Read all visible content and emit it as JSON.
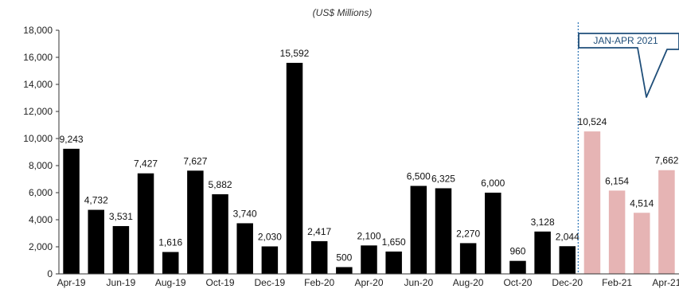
{
  "chart_data": {
    "type": "bar",
    "unit_label": "(US$ Millions)",
    "categories": [
      "Apr-19",
      "May-19",
      "Jun-19",
      "Jul-19",
      "Aug-19",
      "Sep-19",
      "Oct-19",
      "Nov-19",
      "Dec-19",
      "Jan-20",
      "Feb-20",
      "Mar-20",
      "Apr-20",
      "May-20",
      "Jun-20",
      "Jul-20",
      "Aug-20",
      "Sep-20",
      "Oct-20",
      "Nov-20",
      "Dec-20",
      "Jan-21",
      "Feb-21",
      "Mar-21",
      "Apr-21"
    ],
    "values": [
      9243,
      4732,
      3531,
      7427,
      1616,
      7627,
      5882,
      3740,
      2030,
      15592,
      2417,
      500,
      2100,
      1650,
      6500,
      6325,
      2270,
      6000,
      960,
      3128,
      2044,
      10524,
      6154,
      4514,
      7662
    ],
    "data_labels": [
      "9,243",
      "4,732",
      "3,531",
      "7,427",
      "1,616",
      "7,627",
      "5,882",
      "3,740",
      "2,030",
      "15,592",
      "2,417",
      "500",
      "2,100",
      "1,650",
      "6,500",
      "6,325",
      "2,270",
      "6,000",
      "960",
      "3,128",
      "2,044",
      "10,524",
      "6,154",
      "4,514",
      "7,662"
    ],
    "x_tick_labels": [
      "Apr-19",
      "Jun-19",
      "Aug-19",
      "Oct-19",
      "Dec-19",
      "Feb-20",
      "Apr-20",
      "Jun-20",
      "Aug-20",
      "Oct-20",
      "Dec-20",
      "Feb-21",
      "Apr-21"
    ],
    "y_tick_labels": [
      "0",
      "2,000",
      "4,000",
      "6,000",
      "8,000",
      "10,000",
      "12,000",
      "14,000",
      "16,000",
      "18,000"
    ],
    "ylim": [
      0,
      18000
    ],
    "grid": false,
    "highlight": {
      "label": "JAN-APR 2021",
      "start_category": "Jan-21",
      "end_category": "Apr-21"
    },
    "colors": {
      "bar": "#000000",
      "highlight_bar": "#e6b4b4",
      "divider": "#2e75b6",
      "callout": "#1f4e79"
    }
  }
}
